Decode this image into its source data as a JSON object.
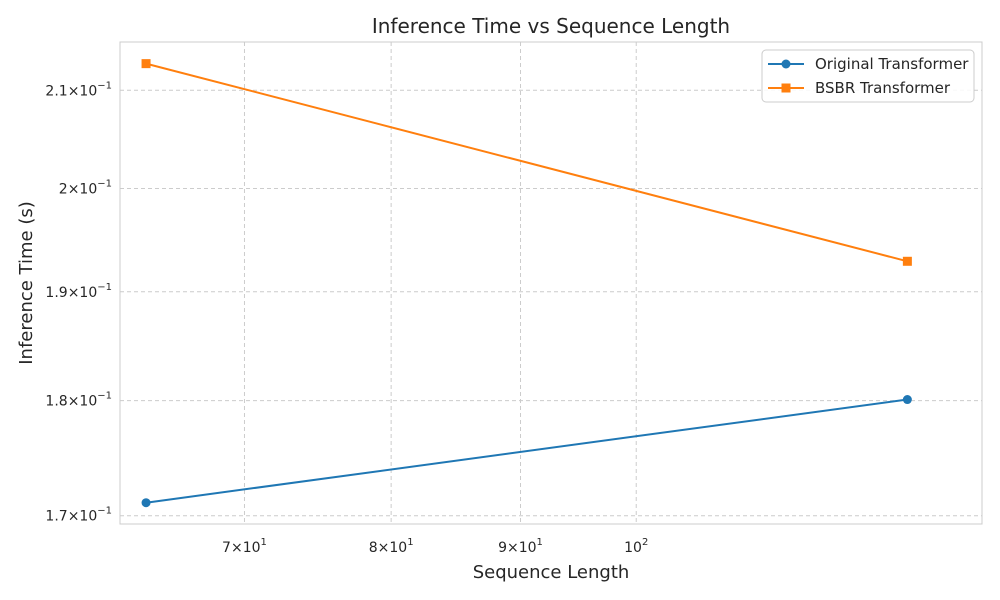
{
  "chart_data": {
    "type": "line",
    "title": "Inference Time vs Sequence Length",
    "xlabel": "Sequence Length",
    "ylabel": "Inference Time (s)",
    "xscale": "log",
    "yscale": "log",
    "xlim": [
      62.5,
      137
    ],
    "ylim": [
      0.1693,
      0.2151
    ],
    "grid": true,
    "legend_position": "top-right",
    "x_ticks": [
      {
        "value": 70,
        "mantissa": "7",
        "base": "10",
        "exp": "1"
      },
      {
        "value": 80,
        "mantissa": "8",
        "base": "10",
        "exp": "1"
      },
      {
        "value": 90,
        "mantissa": "9",
        "base": "10",
        "exp": "1"
      },
      {
        "value": 100,
        "mantissa": "",
        "base": "10",
        "exp": "2"
      }
    ],
    "y_ticks": [
      {
        "value": 0.17,
        "mantissa": "1.7",
        "base": "10",
        "exp": "−1"
      },
      {
        "value": 0.18,
        "mantissa": "1.8",
        "base": "10",
        "exp": "−1"
      },
      {
        "value": 0.19,
        "mantissa": "1.9",
        "base": "10",
        "exp": "−1"
      },
      {
        "value": 0.2,
        "mantissa": "2",
        "base": "10",
        "exp": "−1"
      },
      {
        "value": 0.21,
        "mantissa": "2.1",
        "base": "10",
        "exp": "−1"
      }
    ],
    "series": [
      {
        "name": "Original Transformer",
        "color": "#1f77b4",
        "marker": "circle",
        "x": [
          64,
          128
        ],
        "y": [
          0.1711,
          0.1801
        ]
      },
      {
        "name": "BSBR Transformer",
        "color": "#ff7f0e",
        "marker": "square",
        "x": [
          64,
          128
        ],
        "y": [
          0.2128,
          0.1929
        ]
      }
    ]
  }
}
